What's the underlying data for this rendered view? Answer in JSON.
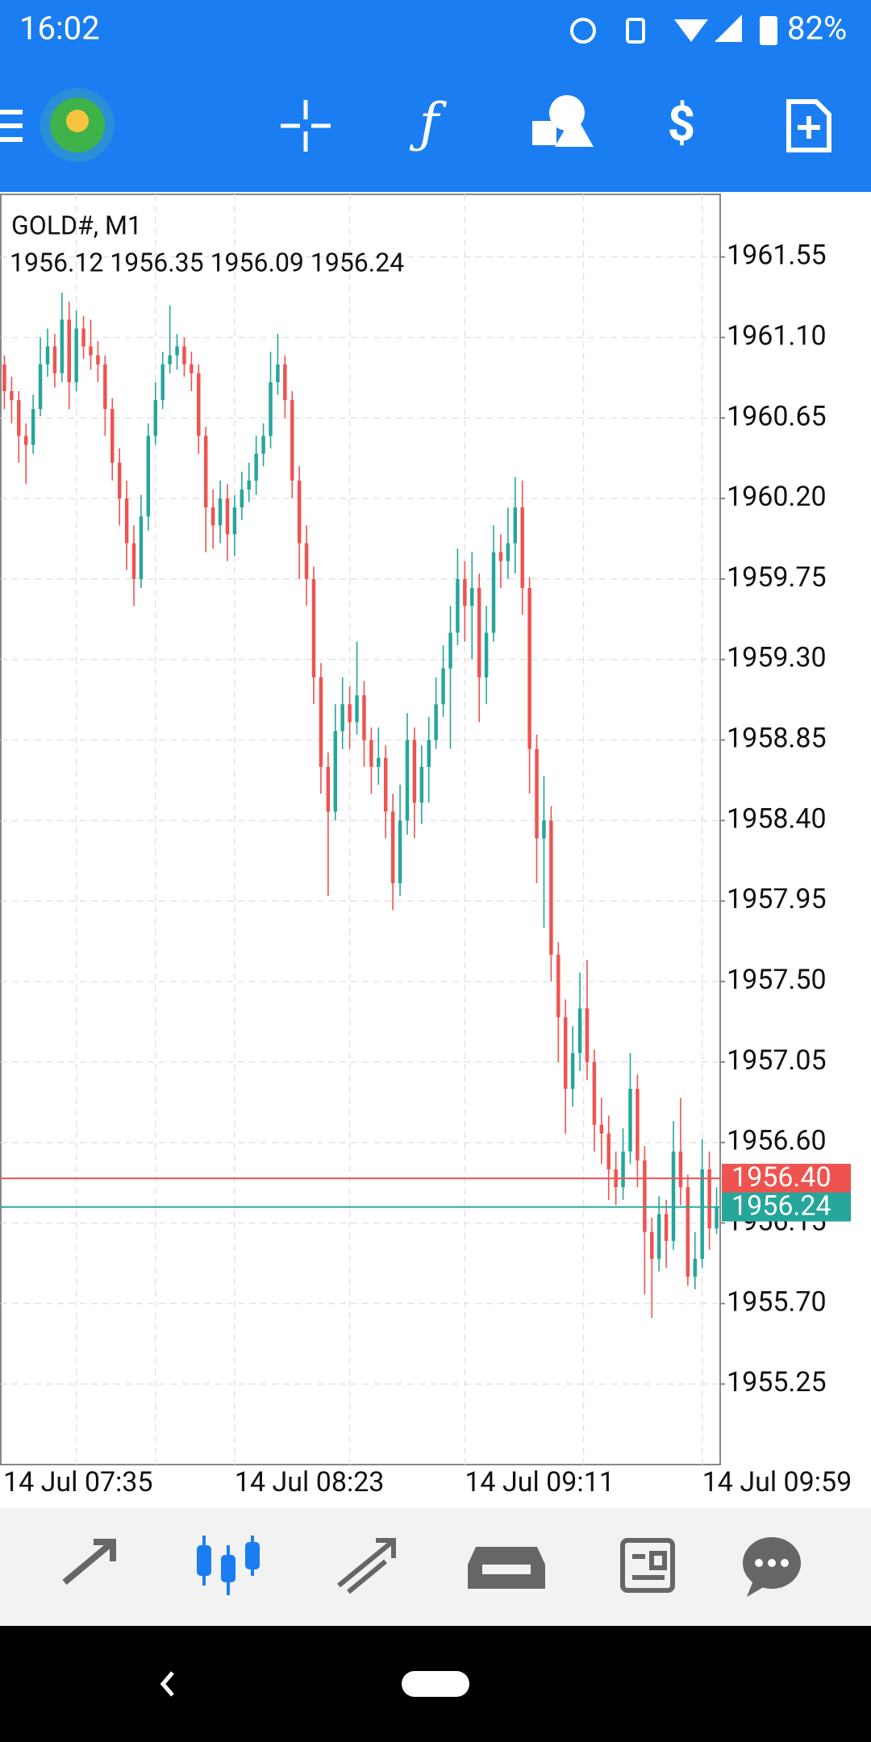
{
  "status_bar": {
    "time": "16:02",
    "battery": "82%"
  },
  "chart_data": {
    "type": "candlestick",
    "title": "GOLD#, M1",
    "ohlc_text": "1956.12 1956.35 1956.09 1956.24",
    "up_color": "#26a69a",
    "down_color": "#ef5350",
    "grid": true,
    "ylim": [
      1954.8,
      1961.9
    ],
    "yticks": [
      {
        "value": 1961.55,
        "label": "1961.55"
      },
      {
        "value": 1961.1,
        "label": "1961.10"
      },
      {
        "value": 1960.65,
        "label": "1960.65"
      },
      {
        "value": 1960.2,
        "label": "1960.20"
      },
      {
        "value": 1959.75,
        "label": "1959.75"
      },
      {
        "value": 1959.3,
        "label": "1959.30"
      },
      {
        "value": 1958.85,
        "label": "1958.85"
      },
      {
        "value": 1958.4,
        "label": "1958.40"
      },
      {
        "value": 1957.95,
        "label": "1957.95"
      },
      {
        "value": 1957.5,
        "label": "1957.50"
      },
      {
        "value": 1957.05,
        "label": "1957.05"
      },
      {
        "value": 1956.6,
        "label": "1956.60"
      },
      {
        "value": 1956.15,
        "label": "1956.15"
      },
      {
        "value": 1955.7,
        "label": "1955.70"
      },
      {
        "value": 1955.25,
        "label": "1955.25"
      }
    ],
    "ask": {
      "value": 1956.4,
      "label": "1956.40",
      "color": "#ef5350"
    },
    "bid": {
      "value": 1956.24,
      "label": "1956.24",
      "color": "#26a69a"
    },
    "categories": [
      null,
      null,
      null,
      null,
      null,
      null,
      null,
      null,
      null,
      null,
      "14 Jul 07:35",
      null,
      null,
      null,
      null,
      null,
      null,
      null,
      null,
      null,
      null,
      null,
      null,
      null,
      null,
      null,
      null,
      null,
      null,
      null,
      null,
      null,
      "14 Jul 08:23",
      null,
      null,
      null,
      null,
      null,
      null,
      null,
      null,
      null,
      null,
      null,
      null,
      null,
      null,
      null,
      null,
      null,
      null,
      null,
      null,
      null,
      null,
      null,
      null,
      null,
      null,
      null,
      null,
      null,
      null,
      null,
      "14 Jul 09:11",
      null,
      null,
      null,
      null,
      null,
      null,
      null,
      null,
      null,
      null,
      null,
      null,
      null,
      null,
      null,
      null,
      null,
      null,
      null,
      null,
      null,
      null,
      null,
      null,
      null,
      null,
      null,
      null,
      null,
      null,
      null,
      null,
      "14 Jul 09:59",
      null,
      null
    ],
    "candles": [
      [
        1960.95,
        1961.0,
        1960.7,
        1960.8
      ],
      [
        1960.8,
        1960.88,
        1960.62,
        1960.75
      ],
      [
        1960.75,
        1960.8,
        1960.4,
        1960.55
      ],
      [
        1960.55,
        1960.62,
        1960.28,
        1960.5
      ],
      [
        1960.5,
        1960.78,
        1960.45,
        1960.7
      ],
      [
        1960.7,
        1961.1,
        1960.66,
        1960.95
      ],
      [
        1960.95,
        1961.15,
        1960.88,
        1961.05
      ],
      [
        1961.05,
        1961.12,
        1960.82,
        1960.9
      ],
      [
        1960.9,
        1961.35,
        1960.85,
        1961.2
      ],
      [
        1961.2,
        1961.3,
        1960.7,
        1960.85
      ],
      [
        1960.85,
        1961.25,
        1960.8,
        1961.15
      ],
      [
        1961.15,
        1961.22,
        1960.98,
        1961.05
      ],
      [
        1961.05,
        1961.2,
        1960.92,
        1961.0
      ],
      [
        1961.0,
        1961.08,
        1960.85,
        1960.95
      ],
      [
        1960.95,
        1961.0,
        1960.55,
        1960.7
      ],
      [
        1960.7,
        1960.76,
        1960.3,
        1960.4
      ],
      [
        1960.4,
        1960.48,
        1960.05,
        1960.2
      ],
      [
        1960.2,
        1960.3,
        1959.8,
        1959.95
      ],
      [
        1959.95,
        1960.05,
        1959.6,
        1959.75
      ],
      [
        1959.75,
        1960.22,
        1959.7,
        1960.1
      ],
      [
        1960.1,
        1960.62,
        1960.02,
        1960.55
      ],
      [
        1960.55,
        1960.85,
        1960.5,
        1960.75
      ],
      [
        1960.75,
        1961.02,
        1960.7,
        1960.95
      ],
      [
        1960.95,
        1961.28,
        1960.9,
        1961.0
      ],
      [
        1961.0,
        1961.12,
        1960.92,
        1961.05
      ],
      [
        1961.05,
        1961.1,
        1960.88,
        1960.95
      ],
      [
        1960.95,
        1961.02,
        1960.8,
        1960.9
      ],
      [
        1960.9,
        1960.95,
        1960.45,
        1960.55
      ],
      [
        1960.55,
        1960.6,
        1959.9,
        1960.15
      ],
      [
        1960.15,
        1960.25,
        1959.92,
        1960.05
      ],
      [
        1960.05,
        1960.3,
        1959.95,
        1960.2
      ],
      [
        1960.2,
        1960.28,
        1959.85,
        1960.0
      ],
      [
        1960.0,
        1960.22,
        1959.88,
        1960.15
      ],
      [
        1960.15,
        1960.35,
        1960.08,
        1960.25
      ],
      [
        1960.25,
        1960.4,
        1960.18,
        1960.3
      ],
      [
        1960.3,
        1960.55,
        1960.22,
        1960.45
      ],
      [
        1960.45,
        1960.62,
        1960.38,
        1960.55
      ],
      [
        1960.55,
        1961.02,
        1960.48,
        1960.85
      ],
      [
        1960.85,
        1961.12,
        1960.78,
        1960.95
      ],
      [
        1960.95,
        1961.0,
        1960.65,
        1960.75
      ],
      [
        1960.75,
        1960.8,
        1960.2,
        1960.3
      ],
      [
        1960.3,
        1960.38,
        1959.75,
        1959.95
      ],
      [
        1959.95,
        1960.05,
        1959.6,
        1959.75
      ],
      [
        1959.75,
        1959.82,
        1959.05,
        1959.2
      ],
      [
        1959.2,
        1959.28,
        1958.55,
        1958.7
      ],
      [
        1958.7,
        1958.78,
        1957.98,
        1958.45
      ],
      [
        1958.45,
        1959.05,
        1958.4,
        1958.9
      ],
      [
        1958.9,
        1959.2,
        1958.8,
        1959.05
      ],
      [
        1959.05,
        1959.15,
        1958.8,
        1958.95
      ],
      [
        1958.95,
        1959.4,
        1958.88,
        1959.1
      ],
      [
        1959.1,
        1959.18,
        1958.7,
        1958.85
      ],
      [
        1958.85,
        1958.92,
        1958.55,
        1958.7
      ],
      [
        1958.7,
        1958.92,
        1958.6,
        1958.75
      ],
      [
        1958.75,
        1958.82,
        1958.3,
        1958.45
      ],
      [
        1958.45,
        1958.55,
        1957.9,
        1958.05
      ],
      [
        1958.05,
        1958.6,
        1957.98,
        1958.4
      ],
      [
        1958.4,
        1959.0,
        1958.32,
        1958.85
      ],
      [
        1958.85,
        1958.92,
        1958.3,
        1958.5
      ],
      [
        1958.5,
        1958.82,
        1958.38,
        1958.7
      ],
      [
        1958.7,
        1958.98,
        1958.5,
        1958.85
      ],
      [
        1958.85,
        1959.2,
        1958.8,
        1959.05
      ],
      [
        1959.05,
        1959.38,
        1958.98,
        1959.25
      ],
      [
        1959.25,
        1959.6,
        1958.8,
        1959.45
      ],
      [
        1959.45,
        1959.92,
        1959.38,
        1959.75
      ],
      [
        1959.75,
        1959.85,
        1959.4,
        1959.6
      ],
      [
        1959.6,
        1959.9,
        1959.3,
        1959.7
      ],
      [
        1959.7,
        1959.78,
        1958.95,
        1959.2
      ],
      [
        1959.2,
        1959.6,
        1959.05,
        1959.45
      ],
      [
        1959.45,
        1960.05,
        1959.4,
        1959.9
      ],
      [
        1959.9,
        1960.0,
        1959.7,
        1959.85
      ],
      [
        1959.85,
        1960.15,
        1959.75,
        1959.95
      ],
      [
        1959.95,
        1960.32,
        1959.78,
        1960.15
      ],
      [
        1960.15,
        1960.3,
        1959.55,
        1959.7
      ],
      [
        1959.7,
        1959.76,
        1958.55,
        1958.8
      ],
      [
        1958.8,
        1958.88,
        1958.05,
        1958.3
      ],
      [
        1958.3,
        1958.65,
        1957.8,
        1958.4
      ],
      [
        1958.4,
        1958.48,
        1957.5,
        1957.65
      ],
      [
        1957.65,
        1957.72,
        1957.05,
        1957.3
      ],
      [
        1957.3,
        1957.4,
        1956.65,
        1956.9
      ],
      [
        1956.9,
        1957.25,
        1956.8,
        1957.1
      ],
      [
        1957.1,
        1957.55,
        1957.0,
        1957.35
      ],
      [
        1957.35,
        1957.62,
        1956.95,
        1957.05
      ],
      [
        1957.05,
        1957.12,
        1956.55,
        1956.7
      ],
      [
        1956.7,
        1956.85,
        1956.48,
        1956.65
      ],
      [
        1956.65,
        1956.75,
        1956.28,
        1956.45
      ],
      [
        1956.45,
        1956.55,
        1956.25,
        1956.35
      ],
      [
        1956.35,
        1956.68,
        1956.28,
        1956.55
      ],
      [
        1956.55,
        1957.1,
        1956.48,
        1956.9
      ],
      [
        1956.9,
        1956.98,
        1956.35,
        1956.5
      ],
      [
        1956.5,
        1956.58,
        1955.75,
        1956.1
      ],
      [
        1956.1,
        1956.18,
        1955.62,
        1955.95
      ],
      [
        1955.95,
        1956.3,
        1955.88,
        1956.2
      ],
      [
        1956.2,
        1956.28,
        1955.9,
        1956.05
      ],
      [
        1956.05,
        1956.72,
        1956.0,
        1956.55
      ],
      [
        1956.55,
        1956.85,
        1956.25,
        1956.35
      ],
      [
        1956.35,
        1956.42,
        1955.8,
        1955.85
      ],
      [
        1955.85,
        1956.1,
        1955.78,
        1955.95
      ],
      [
        1955.95,
        1956.62,
        1955.9,
        1956.45
      ],
      [
        1956.45,
        1956.55,
        1956.0,
        1956.12
      ],
      [
        1956.12,
        1956.35,
        1956.09,
        1956.24
      ]
    ]
  }
}
